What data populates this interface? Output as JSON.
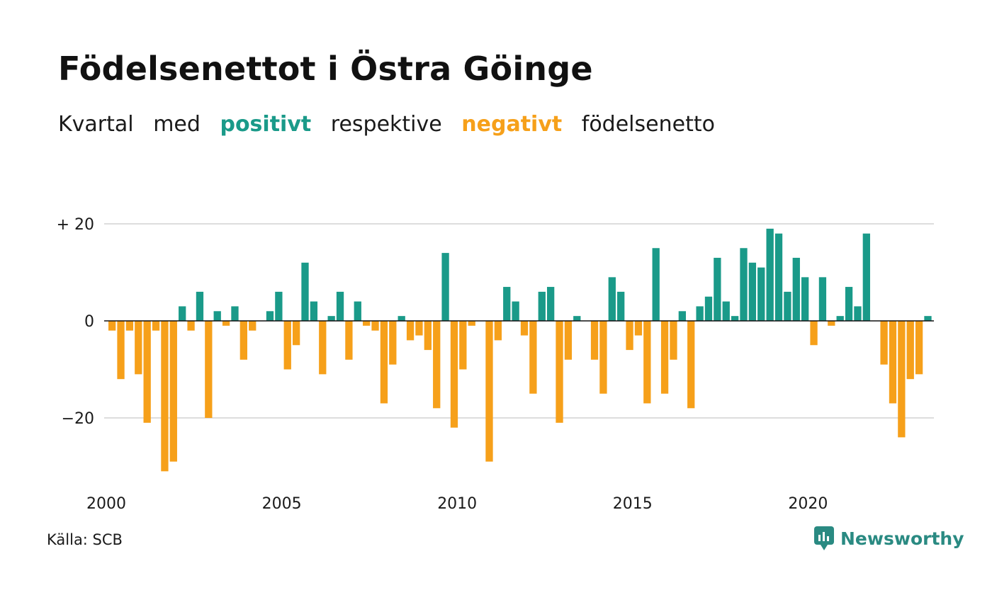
{
  "title": "Födelsenettot i Östra Göinge",
  "subtitle": {
    "part1": "Kvartal",
    "part2": "med",
    "positive_word": "positivt",
    "part3": "respektive",
    "negative_word": "negativt",
    "part4": "födelsenetto"
  },
  "source": "Källa: SCB",
  "brand": "Newsworthy",
  "colors": {
    "positive": "#1a9a89",
    "negative": "#f6a01a",
    "grid": "#dddddd",
    "zero": "#111111",
    "brand": "#2a8a82"
  },
  "chart_data": {
    "type": "bar",
    "x_start": "2000 Q1",
    "x_ticks": [
      "2000",
      "2005",
      "2010",
      "2015",
      "2020"
    ],
    "y_ticks": [
      "+ 20",
      "0",
      "−20"
    ],
    "ylim": [
      -32,
      20
    ],
    "grid": true,
    "values": [
      -2,
      -12,
      -2,
      -11,
      -21,
      -2,
      -31,
      -29,
      3,
      -2,
      6,
      -20,
      2,
      -1,
      3,
      -8,
      -2,
      0,
      2,
      6,
      -10,
      -5,
      12,
      4,
      -11,
      1,
      6,
      -8,
      4,
      -1,
      -2,
      -17,
      -9,
      1,
      -4,
      -3,
      -6,
      -18,
      14,
      -22,
      -10,
      -1,
      0,
      -29,
      -4,
      7,
      4,
      -3,
      -15,
      6,
      7,
      -21,
      -8,
      1,
      0,
      -8,
      -15,
      9,
      6,
      -6,
      -3,
      -17,
      15,
      -15,
      -8,
      2,
      -18,
      3,
      5,
      13,
      4,
      1,
      15,
      12,
      11,
      19,
      18,
      6,
      13,
      9,
      -5,
      9,
      -1,
      1,
      7,
      3,
      18,
      0,
      -9,
      -17,
      -24,
      -12,
      -11,
      1
    ]
  }
}
